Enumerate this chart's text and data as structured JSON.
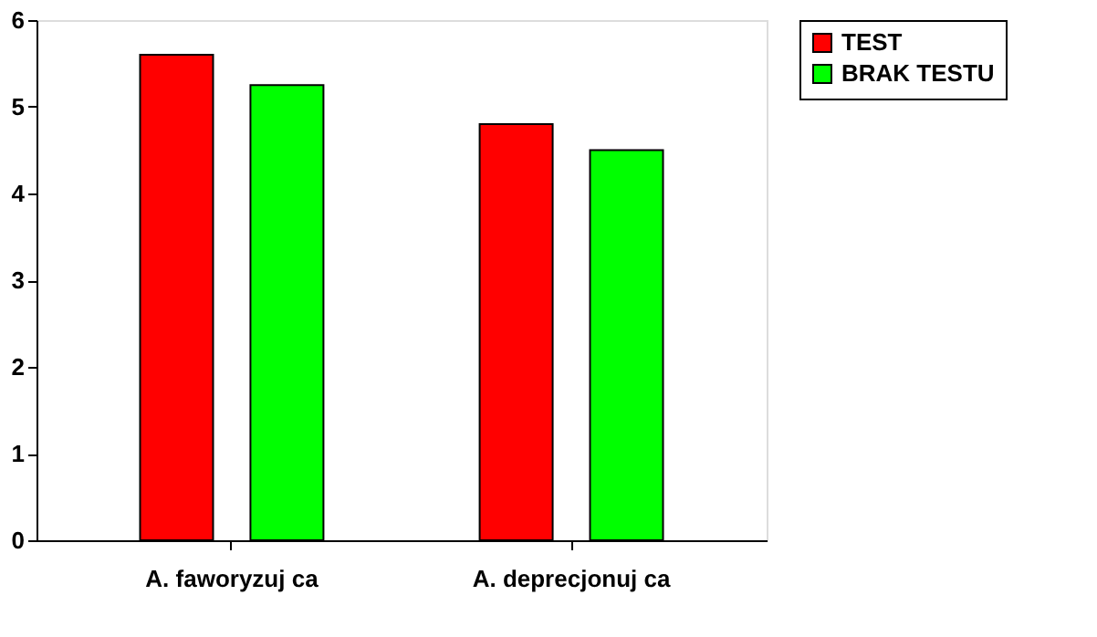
{
  "chart_data": {
    "type": "bar",
    "categories": [
      "A. faworyzuj  ca",
      "A. deprecjonuj  ca"
    ],
    "series": [
      {
        "name": "TEST",
        "color": "#ff0000",
        "values": [
          5.6,
          4.8
        ]
      },
      {
        "name": "BRAK TESTU",
        "color": "#00ff00",
        "values": [
          5.25,
          4.5
        ]
      }
    ],
    "ylim": [
      0,
      6
    ],
    "yticks": [
      0,
      1,
      2,
      3,
      4,
      5,
      6
    ],
    "grid": false,
    "legend": "right"
  }
}
